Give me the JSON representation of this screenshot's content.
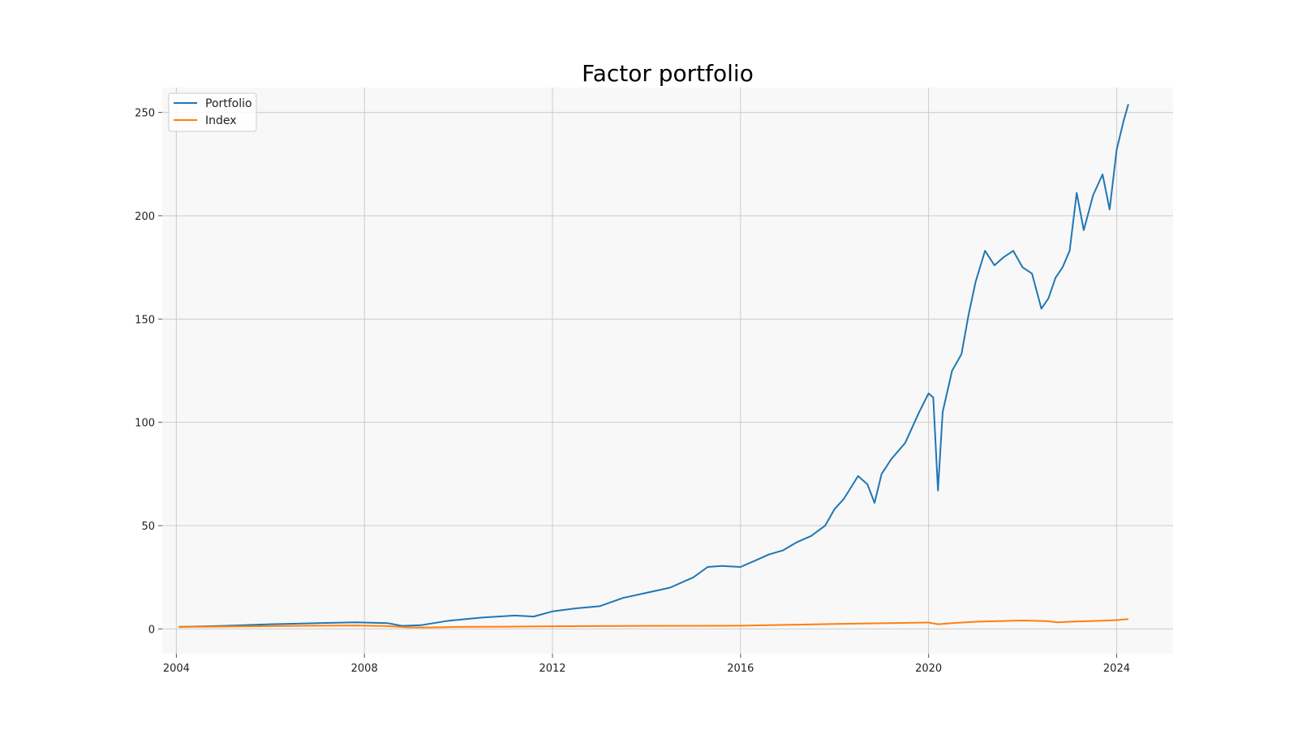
{
  "chart_data": {
    "type": "line",
    "title": "Factor portfolio",
    "xlabel": "",
    "ylabel": "",
    "xlim": [
      2003.7,
      2025.2
    ],
    "ylim": [
      -12,
      262
    ],
    "x_ticks": [
      2004,
      2008,
      2012,
      2016,
      2020,
      2024
    ],
    "y_ticks": [
      0,
      50,
      100,
      150,
      200,
      250
    ],
    "grid": true,
    "legend": {
      "placement": "top-left"
    },
    "colors": {
      "background": "#f8f8f8",
      "grid": "#cccccc"
    },
    "series": [
      {
        "name": "Portfolio",
        "color": "#1f77b4",
        "x": [
          2004.05,
          2005.0,
          2006.0,
          2007.0,
          2007.8,
          2008.5,
          2008.8,
          2009.2,
          2009.8,
          2010.5,
          2011.2,
          2011.6,
          2012.0,
          2012.5,
          2013.0,
          2013.5,
          2014.0,
          2014.5,
          2015.0,
          2015.3,
          2015.6,
          2016.0,
          2016.3,
          2016.6,
          2016.9,
          2017.2,
          2017.5,
          2017.8,
          2018.0,
          2018.2,
          2018.5,
          2018.7,
          2018.85,
          2019.0,
          2019.2,
          2019.5,
          2019.8,
          2020.0,
          2020.1,
          2020.2,
          2020.3,
          2020.5,
          2020.7,
          2020.85,
          2021.0,
          2021.2,
          2021.4,
          2021.6,
          2021.8,
          2022.0,
          2022.2,
          2022.4,
          2022.55,
          2022.7,
          2022.85,
          2023.0,
          2023.15,
          2023.3,
          2023.5,
          2023.7,
          2023.85,
          2024.0,
          2024.15,
          2024.25
        ],
        "values": [
          1.0,
          1.5,
          2.3,
          2.8,
          3.2,
          2.8,
          1.5,
          1.8,
          4.0,
          5.5,
          6.5,
          6.0,
          8.5,
          10.0,
          11.0,
          15.0,
          17.5,
          20.0,
          25.0,
          30.0,
          30.5,
          30.0,
          33.0,
          36.0,
          38.0,
          42.0,
          45.0,
          50.0,
          58.0,
          63.0,
          74.0,
          70.0,
          61.0,
          75.0,
          82.0,
          90.0,
          105.0,
          114.0,
          112.0,
          67.0,
          105.0,
          125.0,
          133.0,
          152.0,
          168.0,
          183.0,
          176.0,
          180.0,
          183.0,
          175.0,
          172.0,
          155.0,
          160.0,
          170.0,
          175.0,
          183.0,
          211.0,
          193.0,
          210.0,
          220.0,
          203.0,
          232.0,
          246.0,
          254.0
        ]
      },
      {
        "name": "Index",
        "color": "#ff7f0e",
        "x": [
          2004.05,
          2006.0,
          2007.8,
          2008.5,
          2008.9,
          2009.3,
          2010.0,
          2011.0,
          2012.0,
          2014.0,
          2016.0,
          2018.0,
          2020.0,
          2020.2,
          2020.5,
          2021.0,
          2022.0,
          2022.5,
          2022.75,
          2023.0,
          2023.7,
          2024.0,
          2024.25
        ],
        "values": [
          1.0,
          1.4,
          1.7,
          1.4,
          0.8,
          0.7,
          1.0,
          1.1,
          1.3,
          1.5,
          1.6,
          2.4,
          3.1,
          2.3,
          2.8,
          3.5,
          4.1,
          3.8,
          3.2,
          3.5,
          4.0,
          4.3,
          4.8
        ]
      }
    ]
  }
}
